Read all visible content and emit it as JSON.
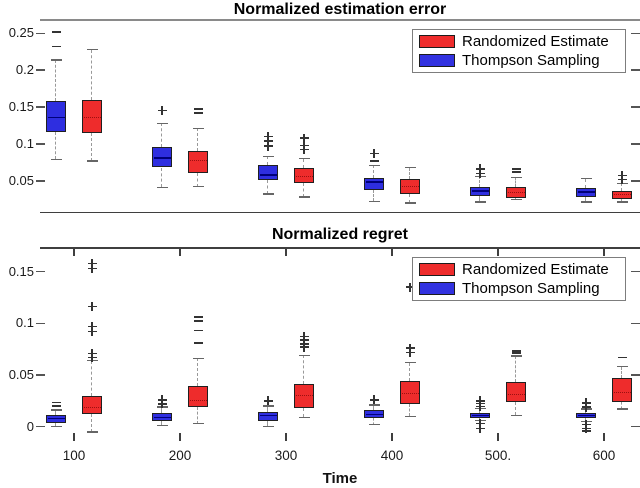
{
  "figure": {
    "legend": {
      "items": [
        {
          "label": "Randomized Estimate",
          "color": "#ee2c2c"
        },
        {
          "label": "Thompson Sampling",
          "color": "#3232e0"
        }
      ]
    }
  },
  "chart_data": [
    {
      "type": "boxplot",
      "title": "Normalized estimation error",
      "x_values": [
        100,
        200,
        300,
        400,
        500,
        600
      ],
      "ylim": [
        0.007,
        0.268
      ],
      "grid": false,
      "legend_position": "top-right",
      "yticks": [
        {
          "v": 0.05,
          "label": "0.05"
        },
        {
          "v": 0.1,
          "label": "0.1"
        },
        {
          "v": 0.15,
          "label": "0.15"
        },
        {
          "v": 0.2,
          "label": "0.2"
        },
        {
          "v": 0.25,
          "label": "0.25"
        }
      ],
      "series": [
        {
          "name": "Thompson Sampling",
          "fill": "#2e2ee0",
          "median_color": "#00007a",
          "median_style": "solid",
          "boxes": [
            {
              "q1": 0.116,
              "med": 0.136,
              "q3": 0.158,
              "wlo": 0.079,
              "whi": 0.214,
              "out": [
                [
                  0.232,
                  "-"
                ],
                [
                  0.252,
                  "-"
                ]
              ]
            },
            {
              "q1": 0.068,
              "med": 0.081,
              "q3": 0.096,
              "wlo": 0.041,
              "whi": 0.128,
              "out": [
                [
                  0.145,
                  "+"
                ]
              ]
            },
            {
              "q1": 0.051,
              "med": 0.058,
              "q3": 0.071,
              "wlo": 0.032,
              "whi": 0.083,
              "out": [
                [
                  0.097,
                  "+"
                ],
                [
                  0.104,
                  "+"
                ],
                [
                  0.11,
                  "+"
                ]
              ]
            },
            {
              "q1": 0.037,
              "med": 0.048,
              "q3": 0.054,
              "wlo": 0.022,
              "whi": 0.071,
              "out": [
                [
                  0.077,
                  "-"
                ],
                [
                  0.087,
                  "+"
                ]
              ]
            },
            {
              "q1": 0.03,
              "med": 0.036,
              "q3": 0.042,
              "wlo": 0.021,
              "whi": 0.056,
              "out": [
                [
                  0.06,
                  "+"
                ],
                [
                  0.066,
                  "+"
                ]
              ]
            },
            {
              "q1": 0.028,
              "med": 0.035,
              "q3": 0.04,
              "wlo": 0.021,
              "whi": 0.053,
              "out": []
            }
          ]
        },
        {
          "name": "Randomized Estimate",
          "fill": "#ee2c2c",
          "median_color": "#9b1010",
          "median_style": "dotted",
          "boxes": [
            {
              "q1": 0.115,
              "med": 0.135,
              "q3": 0.159,
              "wlo": 0.077,
              "whi": 0.228,
              "out": []
            },
            {
              "q1": 0.061,
              "med": 0.077,
              "q3": 0.091,
              "wlo": 0.042,
              "whi": 0.121,
              "out": [
                [
                  0.142,
                  "-"
                ],
                [
                  0.147,
                  "-"
                ]
              ]
            },
            {
              "q1": 0.047,
              "med": 0.056,
              "q3": 0.068,
              "wlo": 0.028,
              "whi": 0.08,
              "out": [
                [
                  0.092,
                  "+"
                ],
                [
                  0.098,
                  "+"
                ],
                [
                  0.108,
                  "+"
                ]
              ]
            },
            {
              "q1": 0.032,
              "med": 0.042,
              "q3": 0.053,
              "wlo": 0.02,
              "whi": 0.068,
              "out": []
            },
            {
              "q1": 0.026,
              "med": 0.034,
              "q3": 0.041,
              "wlo": 0.0245,
              "whi": 0.0545,
              "out": [
                [
                  0.062,
                  "-"
                ],
                [
                  0.066,
                  "-"
                ]
              ]
            },
            {
              "q1": 0.025,
              "med": 0.031,
              "q3": 0.0365,
              "wlo": 0.021,
              "whi": 0.0465,
              "out": [
                [
                  0.052,
                  "+"
                ],
                [
                  0.057,
                  "+"
                ]
              ]
            }
          ]
        }
      ]
    },
    {
      "type": "boxplot",
      "title": "Normalized regret",
      "xlabel": "Time",
      "x_values": [
        100,
        200,
        300,
        400,
        500,
        600
      ],
      "xticks": {
        "values": [
          100,
          200,
          300,
          400,
          500,
          600
        ],
        "labels": [
          "100",
          "200",
          "300",
          "400",
          "500.",
          "600"
        ]
      },
      "ylim": [
        -0.0138,
        0.1733
      ],
      "grid": false,
      "legend_position": "top-right",
      "yticks": [
        {
          "v": 0.0,
          "label": "0"
        },
        {
          "v": 0.05,
          "label": "0.05"
        },
        {
          "v": 0.1,
          "label": "0.1"
        },
        {
          "v": 0.15,
          "label": "0.15"
        }
      ],
      "series": [
        {
          "name": "Thompson Sampling",
          "fill": "#2e2ee0",
          "median_color": "#00007a",
          "median_style": "solid",
          "boxes": [
            {
              "q1": 0.004,
              "med": 0.008,
              "q3": 0.011,
              "wlo": 0.0,
              "whi": 0.016,
              "out": [
                [
                  0.02,
                  "-"
                ],
                [
                  0.0235,
                  "-"
                ]
              ]
            },
            {
              "q1": 0.006,
              "med": 0.009,
              "q3": 0.013,
              "wlo": 0.001,
              "whi": 0.019,
              "out": [
                [
                  0.022,
                  "+"
                ],
                [
                  0.026,
                  "+"
                ]
              ]
            },
            {
              "q1": 0.006,
              "med": 0.011,
              "q3": 0.014,
              "wlo": 0.0,
              "whi": 0.02,
              "out": [
                [
                  0.025,
                  "+"
                ]
              ]
            },
            {
              "q1": 0.008,
              "med": 0.012,
              "q3": 0.016,
              "wlo": 0.002,
              "whi": 0.021,
              "out": [
                [
                  0.026,
                  "+"
                ]
              ]
            },
            {
              "q1": 0.0085,
              "med": 0.011,
              "q3": 0.0135,
              "wlo": 0.006,
              "whi": 0.0175,
              "out": [
                [
                  0.0195,
                  "+"
                ],
                [
                  0.0225,
                  "+"
                ],
                [
                  0.025,
                  "+"
                ],
                [
                  0.003,
                  "+"
                ],
                [
                  -0.002,
                  "+"
                ]
              ]
            },
            {
              "q1": 0.0085,
              "med": 0.011,
              "q3": 0.0135,
              "wlo": 0.005,
              "whi": 0.017,
              "out": [
                [
                  0.019,
                  "+"
                ],
                [
                  0.023,
                  "+"
                ],
                [
                  0.002,
                  "+"
                ],
                [
                  -0.002,
                  "+"
                ],
                [
                  -0.004,
                  "-"
                ]
              ]
            }
          ]
        },
        {
          "name": "Randomized Estimate",
          "fill": "#ee2c2c",
          "median_color": "#9b1010",
          "median_style": "dotted",
          "boxes": [
            {
              "q1": 0.012,
              "med": 0.018,
              "q3": 0.03,
              "wlo": -0.005,
              "whi": 0.064,
              "out": [
                [
                  0.067,
                  "+"
                ],
                [
                  0.071,
                  "+"
                ],
                [
                  0.092,
                  "+"
                ],
                [
                  0.097,
                  "+"
                ],
                [
                  0.116,
                  "+"
                ],
                [
                  0.153,
                  "+"
                ],
                [
                  0.158,
                  "+"
                ]
              ]
            },
            {
              "q1": 0.019,
              "med": 0.025,
              "q3": 0.039,
              "wlo": 0.003,
              "whi": 0.066,
              "out": [
                [
                  0.081,
                  "-"
                ],
                [
                  0.093,
                  "-"
                ],
                [
                  0.102,
                  "-"
                ],
                [
                  0.106,
                  "-"
                ]
              ]
            },
            {
              "q1": 0.018,
              "med": 0.03,
              "q3": 0.041,
              "wlo": 0.009,
              "whi": 0.069,
              "out": [
                [
                  0.077,
                  "+"
                ],
                [
                  0.08,
                  "+"
                ],
                [
                  0.084,
                  "+"
                ],
                [
                  0.087,
                  "+"
                ]
              ]
            },
            {
              "q1": 0.022,
              "med": 0.032,
              "q3": 0.044,
              "wlo": 0.01,
              "whi": 0.062,
              "out": [
                [
                  0.072,
                  "+"
                ],
                [
                  0.076,
                  "+"
                ],
                [
                  0.135,
                  "+"
                ]
              ]
            },
            {
              "q1": 0.024,
              "med": 0.031,
              "q3": 0.043,
              "wlo": 0.011,
              "whi": 0.0685,
              "out": [
                [
                  0.071,
                  "-"
                ],
                [
                  0.073,
                  "-"
                ]
              ]
            },
            {
              "q1": 0.024,
              "med": 0.033,
              "q3": 0.047,
              "wlo": 0.017,
              "whi": 0.058,
              "out": [
                [
                  0.067,
                  "-"
                ]
              ]
            }
          ]
        }
      ]
    }
  ]
}
